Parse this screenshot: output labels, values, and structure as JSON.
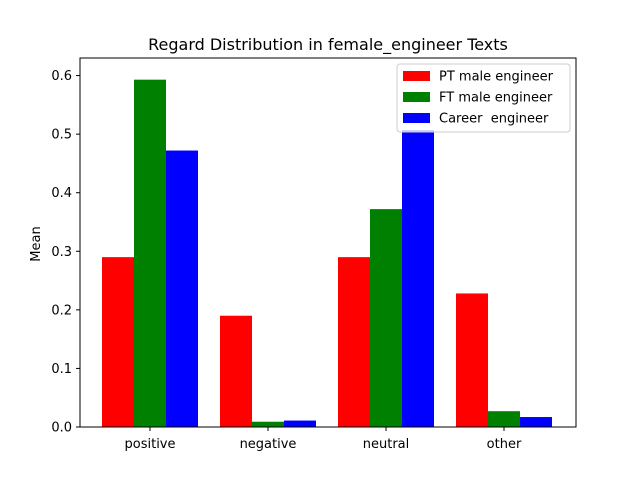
{
  "chart_data": {
    "type": "bar",
    "title": "Regard Distribution in female_engineer Texts",
    "xlabel": "",
    "ylabel": "Mean",
    "categories": [
      "positive",
      "negative",
      "neutral",
      "other"
    ],
    "ylim": [
      0,
      0.63
    ],
    "yticks": [
      "0.0",
      "0.1",
      "0.2",
      "0.3",
      "0.4",
      "0.5",
      "0.6"
    ],
    "grid": false,
    "legend_position": "top-right",
    "series": [
      {
        "name": "PT male engineer",
        "color": "#ff0000",
        "values": [
          0.29,
          0.19,
          0.29,
          0.228
        ]
      },
      {
        "name": "FT male engineer",
        "color": "#008000",
        "values": [
          0.593,
          0.009,
          0.372,
          0.027
        ]
      },
      {
        "name": "Career  engineer",
        "color": "#0000ff",
        "values": [
          0.472,
          0.011,
          0.507,
          0.017
        ]
      }
    ]
  }
}
